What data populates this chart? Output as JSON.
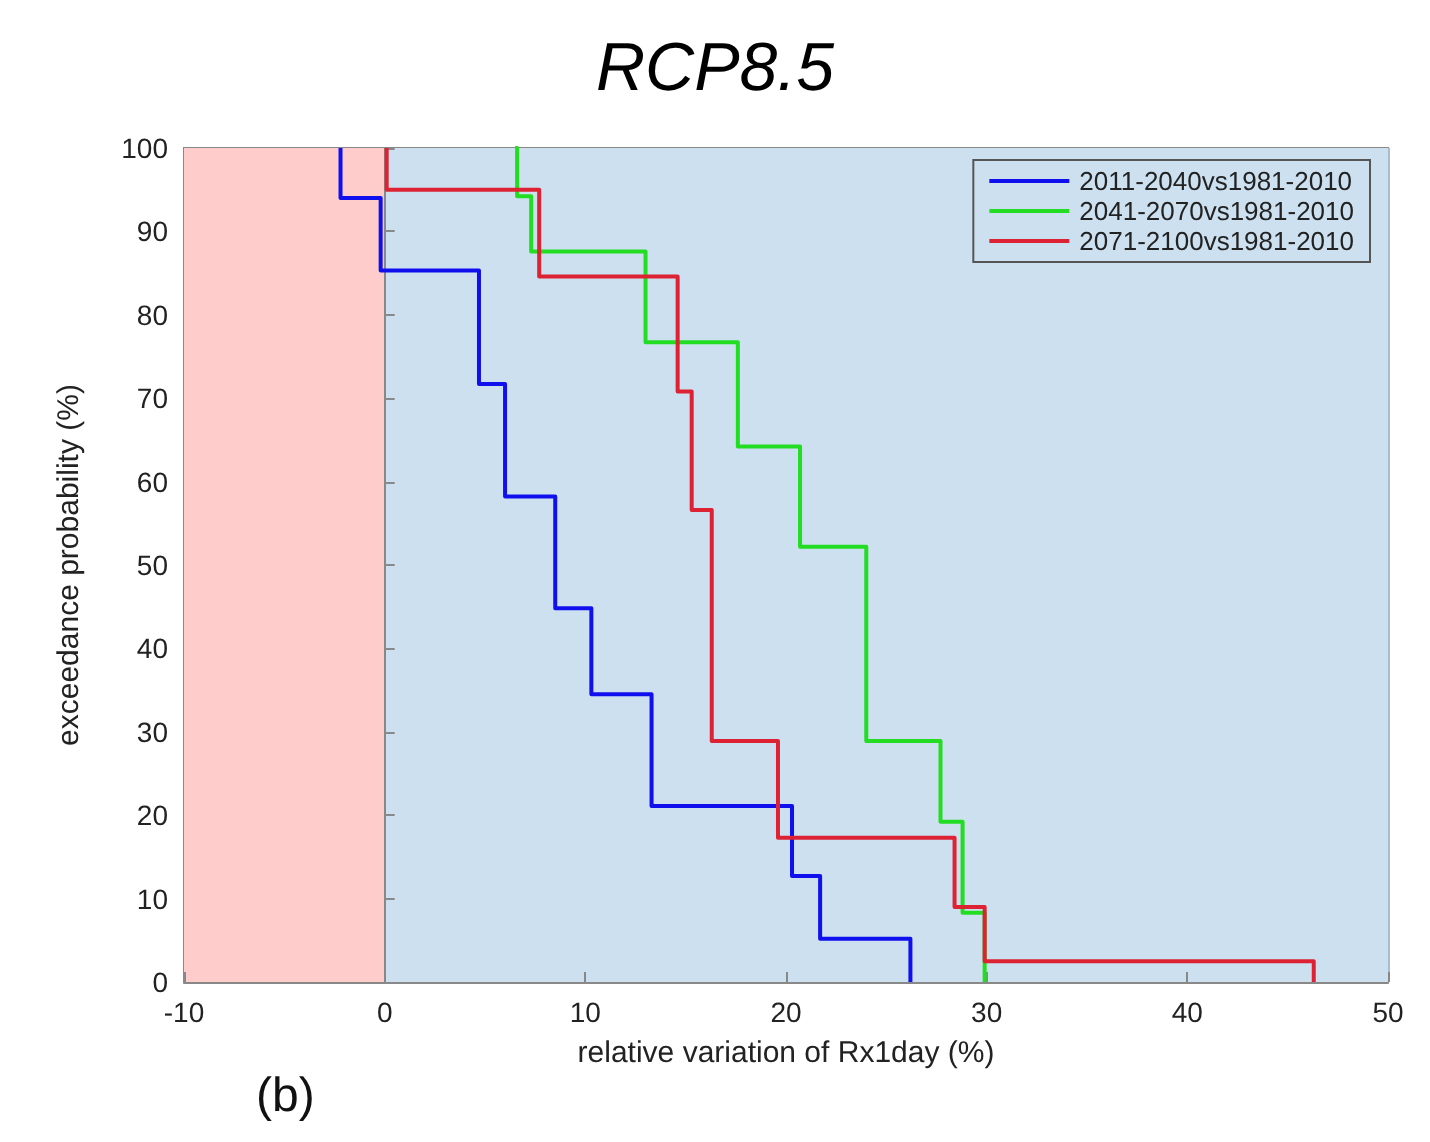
{
  "chart_data": {
    "type": "step",
    "title": "RCP8.5",
    "xlabel": "relative variation of Rx1day (%)",
    "ylabel": "exceedance probability (%)",
    "xlim": [
      -10,
      50
    ],
    "xticks": [
      -10,
      0,
      10,
      20,
      30,
      40,
      50
    ],
    "ylim": [
      0,
      100
    ],
    "yticks": [
      0,
      10,
      20,
      30,
      40,
      50,
      60,
      70,
      80,
      90,
      100
    ],
    "grid": true,
    "legend": "top right",
    "marker": "none",
    "line_style": "solid",
    "bands": [
      {
        "axis": "x",
        "from": -10,
        "to": 0,
        "color": "#ffcccc"
      },
      {
        "axis": "x",
        "from": 0,
        "to": 50,
        "color": "#cce0f0"
      }
    ],
    "annotations": [
      "(b)"
    ],
    "series": [
      {
        "name": "2011-2040vs1981-2010",
        "color": "#1010ee",
        "x": [
          -2.2,
          -2.2,
          -0.2,
          4.7,
          6.0,
          8.5,
          10.3,
          13.3,
          20.3,
          21.7,
          26.2
        ],
        "values": [
          100,
          94,
          85.3,
          71.7,
          58.2,
          44.8,
          34.5,
          21.1,
          12.7,
          5.2,
          0
        ]
      },
      {
        "name": "2041-2070vs1981-2010",
        "color": "#22dd22",
        "x": [
          6.5,
          6.6,
          7.3,
          13.0,
          17.6,
          20.7,
          24.0,
          27.7,
          28.8,
          29.9
        ],
        "values": [
          100,
          94.2,
          87.6,
          76.7,
          64.2,
          52.2,
          28.9,
          19.2,
          8.3,
          0
        ]
      },
      {
        "name": "2071-2100vs1981-2010",
        "color": "#dd2233",
        "x": [
          0.1,
          0.1,
          7.7,
          14.6,
          15.3,
          16.3,
          19.6,
          28.4,
          29.9,
          46.3
        ],
        "values": [
          100,
          95,
          84.6,
          70.8,
          56.6,
          28.9,
          17.3,
          9.0,
          2.5,
          0
        ]
      }
    ]
  }
}
